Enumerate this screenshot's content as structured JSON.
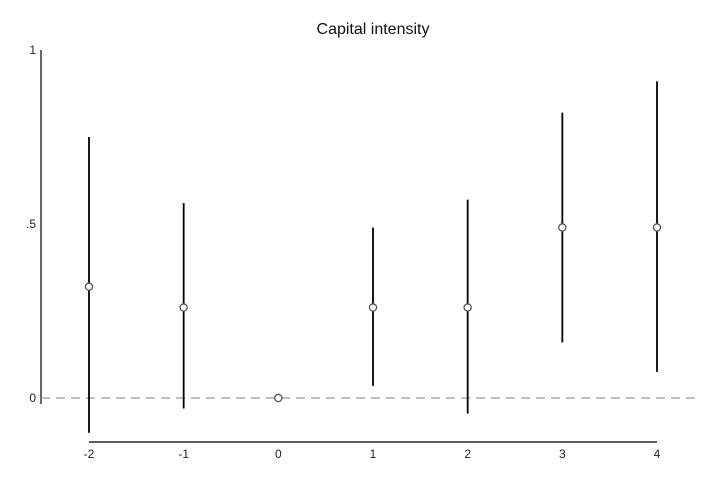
{
  "chart_data": {
    "type": "scatter",
    "title": "Capital intensity",
    "xlabel": "",
    "ylabel": "",
    "x_ticks": [
      "-2",
      "-1",
      "0",
      "1",
      "2",
      "3",
      "4"
    ],
    "y_ticks": [
      {
        "value": 0,
        "label": "0"
      },
      {
        "value": 0.5,
        "label": ".5"
      },
      {
        "value": 1,
        "label": "1"
      }
    ],
    "xlim": [
      -2,
      4
    ],
    "ylim": [
      0,
      1
    ],
    "grid": false,
    "reference_line": {
      "y": 0,
      "style": "dashed",
      "color": "#9a9a9a"
    },
    "series": [
      {
        "marker": "hollow-circle",
        "points": [
          {
            "x": -2,
            "y": 0.32,
            "ci_low": -0.1,
            "ci_high": 0.75
          },
          {
            "x": -1,
            "y": 0.26,
            "ci_low": -0.03,
            "ci_high": 0.56
          },
          {
            "x": 0,
            "y": 0.0,
            "ci_low": 0.0,
            "ci_high": 0.0
          },
          {
            "x": 1,
            "y": 0.26,
            "ci_low": 0.035,
            "ci_high": 0.49
          },
          {
            "x": 2,
            "y": 0.26,
            "ci_low": -0.045,
            "ci_high": 0.57
          },
          {
            "x": 3,
            "y": 0.49,
            "ci_low": 0.16,
            "ci_high": 0.82
          },
          {
            "x": 4,
            "y": 0.49,
            "ci_low": 0.075,
            "ci_high": 0.91
          }
        ]
      }
    ],
    "colors": {
      "ci_line": "#000000",
      "marker": "#555555",
      "axis": "#000000",
      "reference": "#9a9a9a"
    }
  }
}
